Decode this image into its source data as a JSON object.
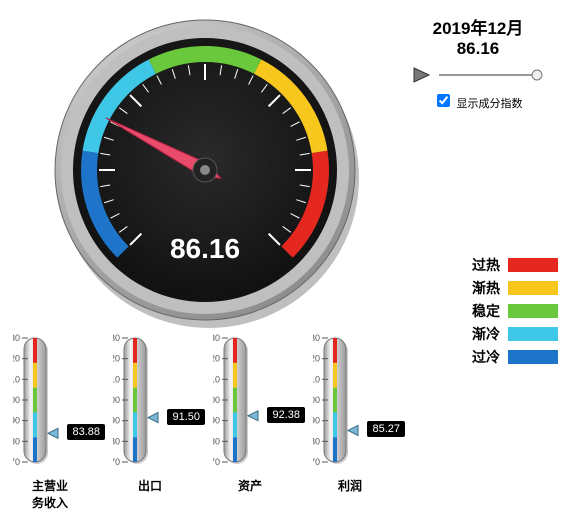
{
  "date_label": "2019年12月",
  "main_value": "86.16",
  "checkbox_label": "显示成分指数",
  "checkbox_checked": true,
  "colors": {
    "overheat": "#e5281f",
    "warming": "#f7c71e",
    "stable": "#6ac83c",
    "cooling": "#3fc7e8",
    "cold": "#1e74c8"
  },
  "gauge": {
    "value": 86.16,
    "display": "86.16",
    "min": 70,
    "max": 130,
    "start_angle": -225,
    "end_angle": 45,
    "bands": [
      {
        "from": 70,
        "to": 82,
        "color_key": "cold"
      },
      {
        "from": 82,
        "to": 94,
        "color_key": "cooling"
      },
      {
        "from": 94,
        "to": 106,
        "color_key": "stable"
      },
      {
        "from": 106,
        "to": 118,
        "color_key": "warming"
      },
      {
        "from": 118,
        "to": 130,
        "color_key": "overheat"
      }
    ],
    "needle_color": "#e94b6a",
    "face_color": "#0a0a0a",
    "rim_light": "#f5f5f5",
    "rim_dark": "#8a8a8a",
    "tick_color": "#ffffff",
    "value_color": "#ffffff",
    "value_fontsize": 28
  },
  "thermometers": [
    {
      "label": "主营业\n务收入",
      "value": 83.88,
      "display": "83.88"
    },
    {
      "label": "出口",
      "value": 91.5,
      "display": "91.50"
    },
    {
      "label": "资产",
      "value": 92.38,
      "display": "92.38"
    },
    {
      "label": "利润",
      "value": 85.27,
      "display": "85.27"
    }
  ],
  "thermo_scale": {
    "min": 70,
    "max": 130,
    "step": 10,
    "bands": [
      {
        "from": 70,
        "to": 82,
        "color_key": "cold"
      },
      {
        "from": 82,
        "to": 94,
        "color_key": "cooling"
      },
      {
        "from": 94,
        "to": 106,
        "color_key": "stable"
      },
      {
        "from": 106,
        "to": 118,
        "color_key": "warming"
      },
      {
        "from": 118,
        "to": 130,
        "color_key": "overheat"
      }
    ],
    "tube_light": "#f5f5f5",
    "tube_dark": "#9a9a9a",
    "pointer_fill": "#78b8d8",
    "pointer_stroke": "#3a6a80",
    "tick_color": "#555555",
    "tick_font": 9
  },
  "legend": [
    {
      "label": "过热",
      "color_key": "overheat"
    },
    {
      "label": "渐热",
      "color_key": "warming"
    },
    {
      "label": "稳定",
      "color_key": "stable"
    },
    {
      "label": "渐冷",
      "color_key": "cooling"
    },
    {
      "label": "过冷",
      "color_key": "cold"
    }
  ]
}
